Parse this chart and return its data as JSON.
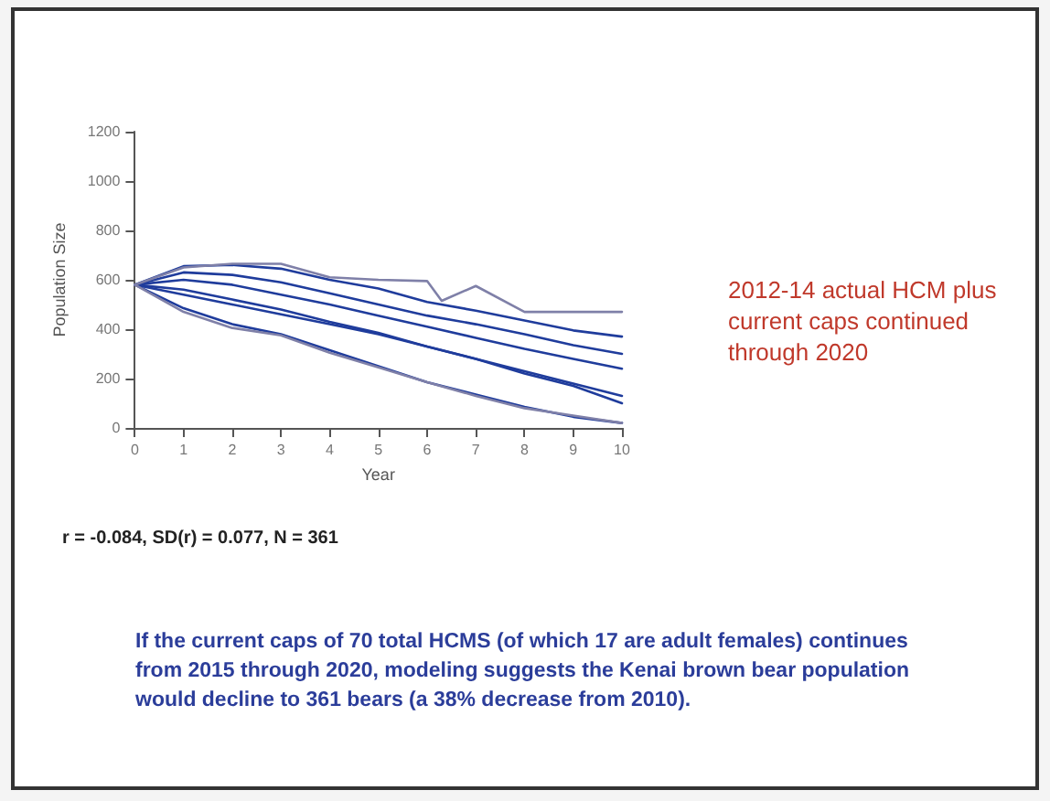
{
  "chart_data": {
    "type": "line",
    "xlabel": "Year",
    "ylabel": "Population Size",
    "x": [
      0,
      1,
      2,
      3,
      4,
      5,
      6,
      7,
      8,
      9,
      10
    ],
    "series": [
      {
        "color": "#1f3c9c",
        "values": [
          580,
          655,
          660,
          645,
          600,
          565,
          510,
          475,
          435,
          395,
          370
        ]
      },
      {
        "color": "#1f3c9c",
        "values": [
          580,
          630,
          620,
          590,
          545,
          500,
          455,
          420,
          380,
          335,
          300
        ]
      },
      {
        "color": "#1f3c9c",
        "values": [
          580,
          600,
          580,
          540,
          500,
          455,
          410,
          365,
          320,
          280,
          240
        ]
      },
      {
        "color": "#1f3c9c",
        "values": [
          580,
          560,
          520,
          480,
          430,
          385,
          330,
          280,
          220,
          170,
          100
        ]
      },
      {
        "color": "#1f3c9c",
        "values": [
          580,
          540,
          500,
          460,
          420,
          380,
          330,
          280,
          230,
          180,
          130
        ]
      },
      {
        "color": "#1f3c9c",
        "values": [
          580,
          485,
          420,
          380,
          315,
          250,
          185,
          135,
          85,
          45,
          20
        ]
      },
      {
        "color": "#7f80a8",
        "x": [
          0,
          1,
          2,
          3,
          4,
          5,
          6,
          6.3,
          7,
          8,
          9,
          10
        ],
        "values": [
          580,
          650,
          665,
          665,
          610,
          600,
          595,
          515,
          575,
          470,
          470,
          470
        ]
      },
      {
        "color": "#7f80a8",
        "values": [
          580,
          470,
          405,
          375,
          305,
          245,
          185,
          130,
          80,
          50,
          20
        ]
      }
    ],
    "xlim": [
      0,
      10
    ],
    "xticks": [
      0,
      1,
      2,
      3,
      4,
      5,
      6,
      7,
      8,
      9,
      10
    ],
    "ylim": [
      0,
      1200
    ],
    "yticks": [
      0,
      200,
      400,
      600,
      800,
      1000,
      1200
    ],
    "grid": false,
    "marker": "none",
    "line_style": "solid",
    "annotations": [
      "2012-14 actual HCM plus current caps continued through 2020",
      "r = -0.084, SD(r) = 0.077, N = 361",
      "If the current caps of 70 total HCMS (of which 17 are adult females) continues from 2015 through 2020, modeling suggests the Kenai brown bear population would decline to 361 bears (a 38% decrease from 2010)."
    ]
  }
}
